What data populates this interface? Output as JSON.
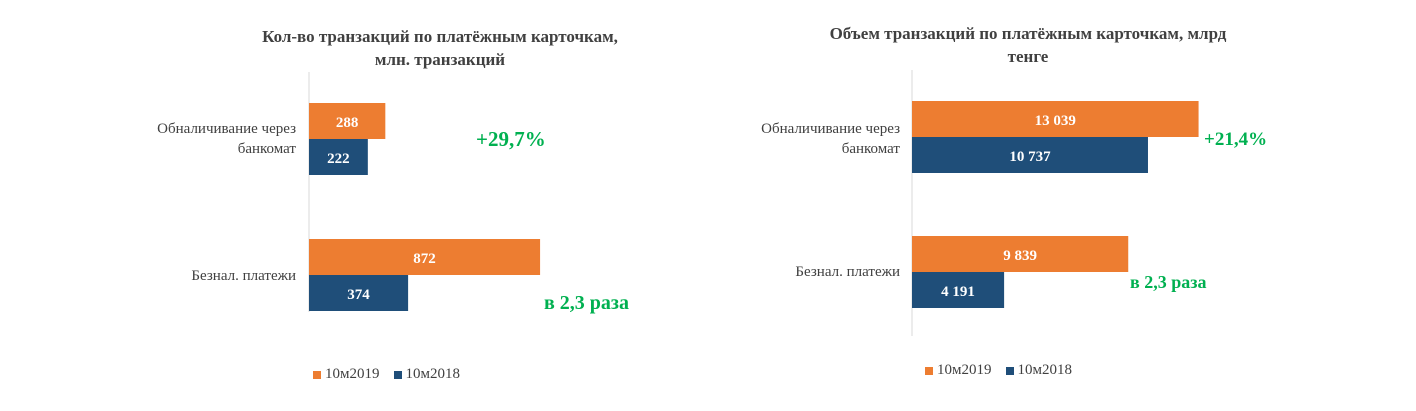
{
  "colors": {
    "series2019": "#ed7d31",
    "series2018": "#1f4e79",
    "growth": "#00b050",
    "label": "#ffffff"
  },
  "chart_data": [
    {
      "type": "bar",
      "orientation": "horizontal",
      "title_lines": [
        "Кол-во транзакций по платёжным карточкам,",
        "млн. транзакций"
      ],
      "categories": [
        [
          "Обналичивание  через",
          "банкомат"
        ],
        [
          "Безнал. платежи"
        ]
      ],
      "series": [
        {
          "name": "10м2019",
          "values": [
            288,
            872
          ],
          "labels": [
            "288",
            "872"
          ]
        },
        {
          "name": "10м2018",
          "values": [
            222,
            374
          ],
          "labels": [
            "222",
            "374"
          ]
        }
      ],
      "annotations": [
        "+29,7%",
        "в 2,3 раза"
      ],
      "xlim": [
        0,
        1000
      ],
      "legend_position": "bottom",
      "grid": false
    },
    {
      "type": "bar",
      "orientation": "horizontal",
      "title_lines": [
        "Объем транзакций по платёжным карточкам, млрд",
        "тенге"
      ],
      "categories": [
        [
          "Обналичивание  через",
          "банкомат"
        ],
        [
          "Безнал. платежи"
        ]
      ],
      "series": [
        {
          "name": "10м2019",
          "values": [
            13039,
            9839
          ],
          "labels": [
            "13 039",
            "9 839"
          ]
        },
        {
          "name": "10м2018",
          "values": [
            10737,
            4191
          ],
          "labels": [
            "10 737",
            "4 191"
          ]
        }
      ],
      "annotations": [
        "+21,4%",
        "в 2,3 раза"
      ],
      "xlim": [
        0,
        17000
      ],
      "legend_position": "bottom",
      "grid": false
    }
  ]
}
